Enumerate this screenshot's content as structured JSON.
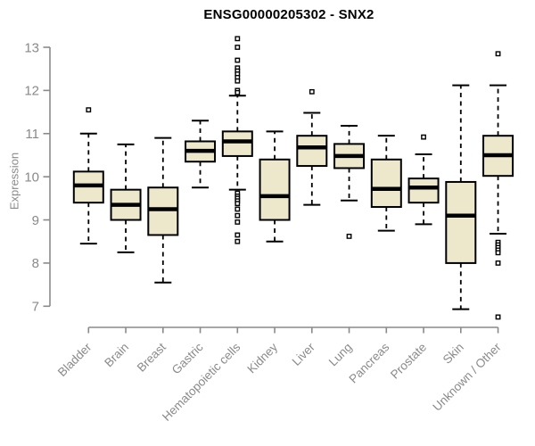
{
  "chart_data": {
    "type": "boxplot",
    "title": "ENSG00000205302 - SNX2",
    "xlabel": "",
    "ylabel": "Expression",
    "ylim": [
      7,
      13
    ],
    "yticks": [
      7,
      8,
      9,
      10,
      11,
      12,
      13
    ],
    "grid": false,
    "legend": "none",
    "categories": [
      "Bladder",
      "Brain",
      "Breast",
      "Gastric",
      "Hematopoietic cells",
      "Kidney",
      "Liver",
      "Lung",
      "Pancreas",
      "Prostate",
      "Skin",
      "Unknown / Other"
    ],
    "series": [
      {
        "name": "Bladder",
        "whisker_low": 8.45,
        "q1": 9.4,
        "median": 9.8,
        "q3": 10.12,
        "whisker_high": 11.0,
        "outliers": [
          11.55
        ]
      },
      {
        "name": "Brain",
        "whisker_low": 8.25,
        "q1": 9.0,
        "median": 9.35,
        "q3": 9.7,
        "whisker_high": 10.75,
        "outliers": []
      },
      {
        "name": "Breast",
        "whisker_low": 7.55,
        "q1": 8.65,
        "median": 9.25,
        "q3": 9.75,
        "whisker_high": 10.9,
        "outliers": []
      },
      {
        "name": "Gastric",
        "whisker_low": 9.75,
        "q1": 10.35,
        "median": 10.6,
        "q3": 10.82,
        "whisker_high": 11.3,
        "outliers": []
      },
      {
        "name": "Hematopoietic cells",
        "whisker_low": 9.7,
        "q1": 10.48,
        "median": 10.82,
        "q3": 11.05,
        "whisker_high": 11.88,
        "outliers": [
          13.2,
          13.0,
          12.7,
          12.52,
          12.45,
          12.38,
          12.3,
          12.22,
          12.0,
          11.95,
          9.62,
          9.55,
          9.5,
          9.44,
          9.38,
          9.25,
          9.1,
          8.95,
          8.65,
          8.5
        ]
      },
      {
        "name": "Kidney",
        "whisker_low": 8.5,
        "q1": 9.0,
        "median": 9.55,
        "q3": 10.4,
        "whisker_high": 11.05,
        "outliers": []
      },
      {
        "name": "Liver",
        "whisker_low": 9.35,
        "q1": 10.25,
        "median": 10.68,
        "q3": 10.95,
        "whisker_high": 11.48,
        "outliers": [
          11.97
        ]
      },
      {
        "name": "Lung",
        "whisker_low": 9.45,
        "q1": 10.2,
        "median": 10.48,
        "q3": 10.76,
        "whisker_high": 11.18,
        "outliers": [
          8.62
        ]
      },
      {
        "name": "Pancreas",
        "whisker_low": 8.75,
        "q1": 9.3,
        "median": 9.72,
        "q3": 10.4,
        "whisker_high": 10.95,
        "outliers": []
      },
      {
        "name": "Prostate",
        "whisker_low": 8.9,
        "q1": 9.4,
        "median": 9.75,
        "q3": 9.96,
        "whisker_high": 10.52,
        "outliers": [
          10.92
        ]
      },
      {
        "name": "Skin",
        "whisker_low": 6.93,
        "q1": 8.0,
        "median": 9.1,
        "q3": 9.88,
        "whisker_high": 12.12,
        "outliers": []
      },
      {
        "name": "Unknown / Other",
        "whisker_low": 8.68,
        "q1": 10.02,
        "median": 10.5,
        "q3": 10.95,
        "whisker_high": 12.12,
        "outliers": [
          12.85,
          8.48,
          8.42,
          8.36,
          8.3,
          8.24,
          8.0,
          6.75
        ]
      }
    ],
    "colors": {
      "box_fill": "#EDE8CC",
      "box_stroke": "#000000",
      "axis": "#8A8A8A",
      "title": "#000000",
      "background": "#FFFFFF"
    }
  }
}
